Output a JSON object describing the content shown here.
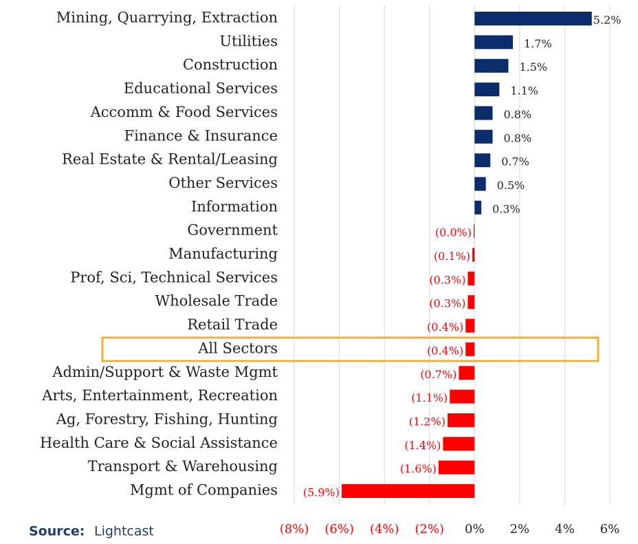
{
  "chart_data": {
    "type": "bar",
    "orientation": "horizontal",
    "categories": [
      "Mining, Quarrying, Extraction",
      "Utilities",
      "Construction",
      "Educational Services",
      "Accomm & Food Services",
      "Finance & Insurance",
      "Real Estate & Rental/Leasing",
      "Other Services",
      "Information",
      "Government",
      "Manufacturing",
      "Prof, Sci, Technical Services",
      "Wholesale Trade",
      "Retail Trade",
      "All Sectors",
      "Admin/Support & Waste Mgmt",
      "Arts, Entertainment, Recreation",
      "Ag, Forestry, Fishing, Hunting",
      "Health Care & Social Assistance",
      "Transport & Warehousing",
      "Mgmt of Companies"
    ],
    "values": [
      5.2,
      1.7,
      1.5,
      1.1,
      0.8,
      0.8,
      0.7,
      0.5,
      0.3,
      -0.04,
      -0.1,
      -0.3,
      -0.3,
      -0.4,
      -0.4,
      -0.7,
      -1.1,
      -1.2,
      -1.4,
      -1.6,
      -5.9
    ],
    "value_labels": [
      "5.2%",
      "1.7%",
      "1.5%",
      "1.1%",
      "0.8%",
      "0.8%",
      "0.7%",
      "0.5%",
      "0.3%",
      "(0.0%)",
      "(0.1%)",
      "(0.3%)",
      "(0.3%)",
      "(0.4%)",
      "(0.4%)",
      "(0.7%)",
      "(1.1%)",
      "(1.2%)",
      "(1.4%)",
      "(1.6%)",
      "(5.9%)"
    ],
    "color": "#0b2d6b",
    "negative_color": "#ff0000",
    "xlim": [
      -8,
      6
    ],
    "xticks": [
      {
        "value": -8,
        "label": "(8%)"
      },
      {
        "value": -6,
        "label": "(6%)"
      },
      {
        "value": -4,
        "label": "(4%)"
      },
      {
        "value": -2,
        "label": "(2%)"
      },
      {
        "value": 0,
        "label": "0%"
      },
      {
        "value": 2,
        "label": "2%"
      },
      {
        "value": 4,
        "label": "4%"
      },
      {
        "value": 6,
        "label": "6%"
      }
    ],
    "grid": true,
    "source_label": "Source:",
    "source": "Lightcast"
  }
}
